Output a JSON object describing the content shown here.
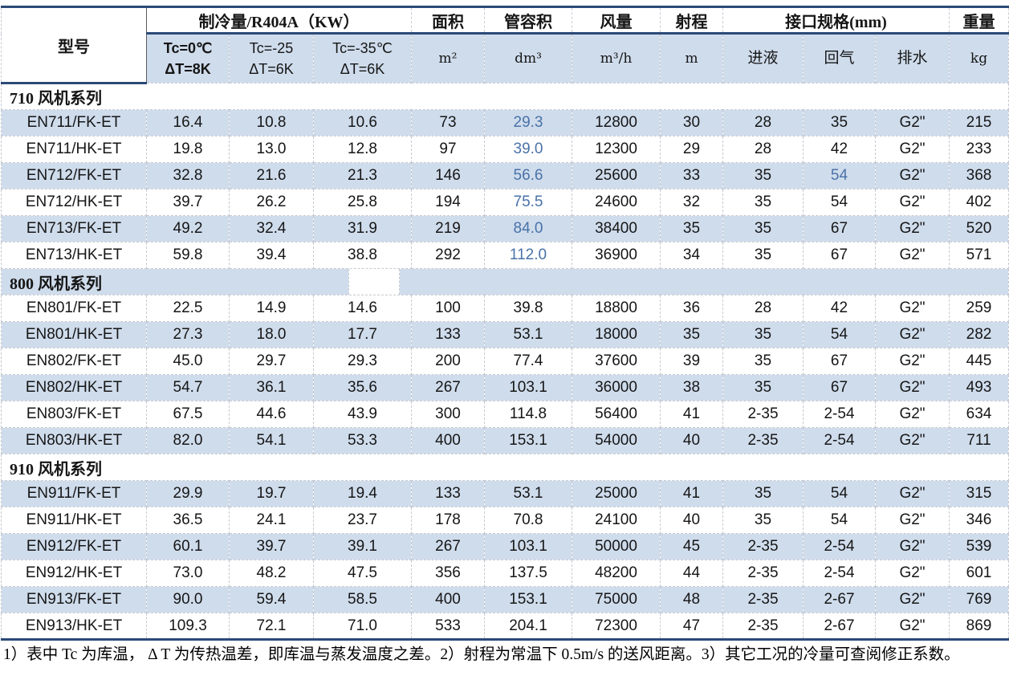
{
  "colors": {
    "band_blue": "#cfdcec",
    "navy_border": "#2b4a77",
    "blue_value_text": "#4a72a8",
    "grid_dash": "#c6cad1"
  },
  "table": {
    "header": {
      "model": "型号",
      "capacity_group": "制冷量/R404A（KW）",
      "tc0_line1": "Tc=0℃",
      "tc0_line2": "ΔT=8K",
      "tc25_line1": "Tc=-25",
      "tc25_line2": "ΔT=6K",
      "tc35_line1": "Tc=-35℃",
      "tc35_line2": "ΔT=6K",
      "area_label": "面积",
      "area_unit": "m²",
      "tube_volume_label": "管容积",
      "tube_volume_unit": "dm³",
      "air_flow_label": "风量",
      "air_flow_unit": "m³/h",
      "throw_label": "射程",
      "throw_unit": "m",
      "connection_group": "接口规格(mm)",
      "liquid_label": "进液",
      "gas_label": "回气",
      "drain_label": "排水",
      "weight_label": "重量",
      "weight_unit": "kg"
    },
    "columns_order": [
      "model",
      "tc0",
      "tc25",
      "tc35",
      "area",
      "vol",
      "flow",
      "range",
      "liquid",
      "gas",
      "drain",
      "weight"
    ],
    "sections": [
      {
        "title": "710 风机系列",
        "shaded": false,
        "gap": false,
        "rows": [
          {
            "model": "EN711/FK-ET",
            "tc0": "16.4",
            "tc25": "10.8",
            "tc35": "10.6",
            "area": "73",
            "vol": "29.3",
            "flow": "12800",
            "range": "30",
            "liquid": "28",
            "gas": "35",
            "drain": "G2\"",
            "weight": "215",
            "shaded": true,
            "blue": [
              "vol"
            ]
          },
          {
            "model": "EN711/HK-ET",
            "tc0": "19.8",
            "tc25": "13.0",
            "tc35": "12.8",
            "area": "97",
            "vol": "39.0",
            "flow": "12300",
            "range": "29",
            "liquid": "28",
            "gas": "42",
            "drain": "G2\"",
            "weight": "233",
            "shaded": false,
            "blue": [
              "vol"
            ]
          },
          {
            "model": "EN712/FK-ET",
            "tc0": "32.8",
            "tc25": "21.6",
            "tc35": "21.3",
            "area": "146",
            "vol": "56.6",
            "flow": "25600",
            "range": "33",
            "liquid": "35",
            "gas": "54",
            "drain": "G2\"",
            "weight": "368",
            "shaded": true,
            "blue": [
              "vol",
              "gas"
            ]
          },
          {
            "model": "EN712/HK-ET",
            "tc0": "39.7",
            "tc25": "26.2",
            "tc35": "25.8",
            "area": "194",
            "vol": "75.5",
            "flow": "24600",
            "range": "32",
            "liquid": "35",
            "gas": "54",
            "drain": "G2\"",
            "weight": "402",
            "shaded": false,
            "blue": [
              "vol"
            ]
          },
          {
            "model": "EN713/FK-ET",
            "tc0": "49.2",
            "tc25": "32.4",
            "tc35": "31.9",
            "area": "219",
            "vol": "84.0",
            "flow": "38400",
            "range": "35",
            "liquid": "35",
            "gas": "67",
            "drain": "G2\"",
            "weight": "520",
            "shaded": true,
            "blue": [
              "vol"
            ]
          },
          {
            "model": "EN713/HK-ET",
            "tc0": "59.8",
            "tc25": "39.4",
            "tc35": "38.8",
            "area": "292",
            "vol": "112.0",
            "flow": "36900",
            "range": "34",
            "liquid": "35",
            "gas": "67",
            "drain": "G2\"",
            "weight": "571",
            "shaded": false,
            "blue": [
              "vol"
            ]
          }
        ]
      },
      {
        "title": "800 风机系列",
        "shaded": true,
        "gap": true,
        "rows": [
          {
            "model": "EN801/FK-ET",
            "tc0": "22.5",
            "tc25": "14.9",
            "tc35": "14.6",
            "area": "100",
            "vol": "39.8",
            "flow": "18800",
            "range": "36",
            "liquid": "28",
            "gas": "42",
            "drain": "G2\"",
            "weight": "259",
            "shaded": false,
            "blue": []
          },
          {
            "model": "EN801/HK-ET",
            "tc0": "27.3",
            "tc25": "18.0",
            "tc35": "17.7",
            "area": "133",
            "vol": "53.1",
            "flow": "18000",
            "range": "35",
            "liquid": "35",
            "gas": "54",
            "drain": "G2\"",
            "weight": "282",
            "shaded": true,
            "blue": []
          },
          {
            "model": "EN802/FK-ET",
            "tc0": "45.0",
            "tc25": "29.7",
            "tc35": "29.3",
            "area": "200",
            "vol": "77.4",
            "flow": "37600",
            "range": "39",
            "liquid": "35",
            "gas": "67",
            "drain": "G2\"",
            "weight": "445",
            "shaded": false,
            "blue": []
          },
          {
            "model": "EN802/HK-ET",
            "tc0": "54.7",
            "tc25": "36.1",
            "tc35": "35.6",
            "area": "267",
            "vol": "103.1",
            "flow": "36000",
            "range": "38",
            "liquid": "35",
            "gas": "67",
            "drain": "G2\"",
            "weight": "493",
            "shaded": true,
            "blue": []
          },
          {
            "model": "EN803/FK-ET",
            "tc0": "67.5",
            "tc25": "44.6",
            "tc35": "43.9",
            "area": "300",
            "vol": "114.8",
            "flow": "56400",
            "range": "41",
            "liquid": "2-35",
            "gas": "2-54",
            "drain": "G2\"",
            "weight": "634",
            "shaded": false,
            "blue": []
          },
          {
            "model": "EN803/HK-ET",
            "tc0": "82.0",
            "tc25": "54.1",
            "tc35": "53.3",
            "area": "400",
            "vol": "153.1",
            "flow": "54000",
            "range": "40",
            "liquid": "2-35",
            "gas": "2-54",
            "drain": "G2\"",
            "weight": "711",
            "shaded": true,
            "blue": []
          }
        ]
      },
      {
        "title": "910 风机系列",
        "shaded": false,
        "gap": false,
        "rows": [
          {
            "model": "EN911/FK-ET",
            "tc0": "29.9",
            "tc25": "19.7",
            "tc35": "19.4",
            "area": "133",
            "vol": "53.1",
            "flow": "25000",
            "range": "41",
            "liquid": "35",
            "gas": "54",
            "drain": "G2\"",
            "weight": "315",
            "shaded": true,
            "blue": []
          },
          {
            "model": "EN911/HK-ET",
            "tc0": "36.5",
            "tc25": "24.1",
            "tc35": "23.7",
            "area": "178",
            "vol": "70.8",
            "flow": "24100",
            "range": "40",
            "liquid": "35",
            "gas": "54",
            "drain": "G2\"",
            "weight": "346",
            "shaded": false,
            "blue": []
          },
          {
            "model": "EN912/FK-ET",
            "tc0": "60.1",
            "tc25": "39.7",
            "tc35": "39.1",
            "area": "267",
            "vol": "103.1",
            "flow": "50000",
            "range": "45",
            "liquid": "2-35",
            "gas": "2-54",
            "drain": "G2\"",
            "weight": "539",
            "shaded": true,
            "blue": []
          },
          {
            "model": "EN912/HK-ET",
            "tc0": "73.0",
            "tc25": "48.2",
            "tc35": "47.5",
            "area": "356",
            "vol": "137.5",
            "flow": "48200",
            "range": "44",
            "liquid": "2-35",
            "gas": "2-54",
            "drain": "G2\"",
            "weight": "601",
            "shaded": false,
            "blue": []
          },
          {
            "model": "EN913/FK-ET",
            "tc0": "90.0",
            "tc25": "59.4",
            "tc35": "58.5",
            "area": "400",
            "vol": "153.1",
            "flow": "75000",
            "range": "48",
            "liquid": "2-35",
            "gas": "2-67",
            "drain": "G2\"",
            "weight": "769",
            "shaded": true,
            "blue": []
          },
          {
            "model": "EN913/HK-ET",
            "tc0": "109.3",
            "tc25": "72.1",
            "tc35": "71.0",
            "area": "533",
            "vol": "204.1",
            "flow": "72300",
            "range": "47",
            "liquid": "2-35",
            "gas": "2-67",
            "drain": "G2\"",
            "weight": "869",
            "shaded": false,
            "blue": []
          }
        ]
      }
    ]
  },
  "footnote": "1）表中 Tc 为库温， Δ T 为传热温差，即库温与蒸发温度之差。2）射程为常温下 0.5m/s 的送风距离。3）其它工况的冷量可查阅修正系数。"
}
